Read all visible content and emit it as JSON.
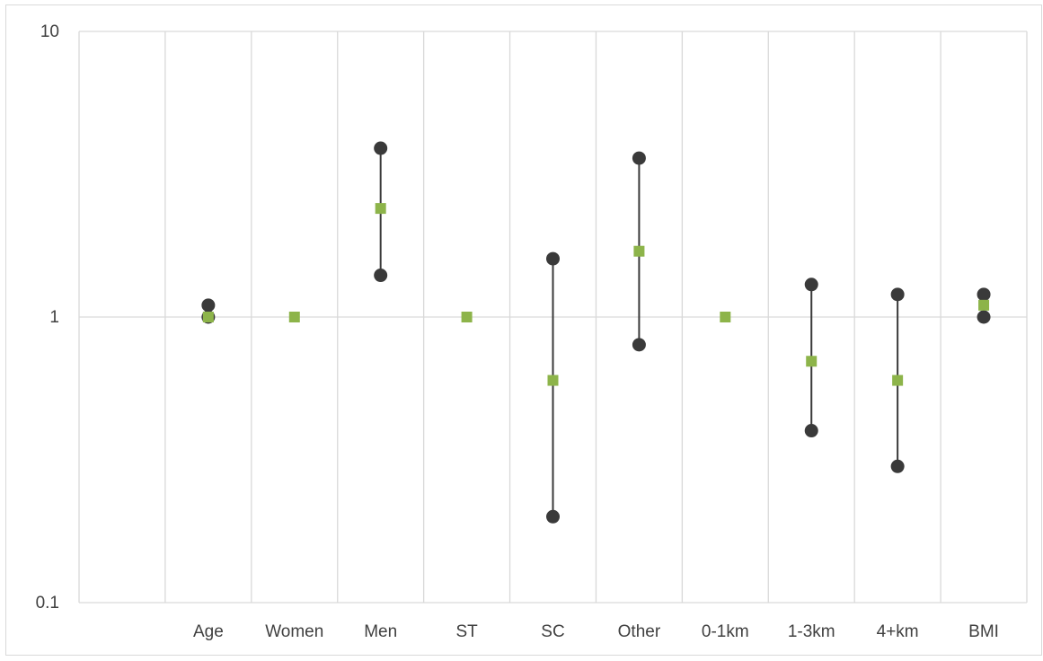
{
  "chart_data": {
    "type": "scatter",
    "scale": "log",
    "ylim": [
      0.1,
      10
    ],
    "y_ticks": [
      {
        "value": 10,
        "label": "10"
      },
      {
        "value": 1,
        "label": "1"
      },
      {
        "value": 0.1,
        "label": "0.1"
      }
    ],
    "categories": [
      "Age",
      "Women",
      "Men",
      "ST",
      "SC",
      "Other",
      "0-1km",
      "1-3km",
      "4+km",
      "BMI"
    ],
    "leading_blank_category": true,
    "grid": true,
    "legend": "none",
    "series": [
      {
        "role": "estimate",
        "marker": "square",
        "color": "#8db44a",
        "values": [
          1.0,
          1.0,
          2.4,
          1.0,
          0.6,
          1.7,
          1.0,
          0.7,
          0.6,
          1.1
        ]
      },
      {
        "role": "lower",
        "marker": "circle",
        "color": "#3a3a3a",
        "values": [
          1.0,
          null,
          1.4,
          null,
          0.2,
          0.8,
          null,
          0.4,
          0.3,
          1.0
        ]
      },
      {
        "role": "upper",
        "marker": "circle",
        "color": "#3a3a3a",
        "values": [
          1.1,
          null,
          3.9,
          null,
          1.6,
          3.6,
          null,
          1.3,
          1.2,
          1.2
        ]
      }
    ],
    "interval_line_color": "#3a3a3a",
    "grid_color": "#d9d9d9"
  }
}
